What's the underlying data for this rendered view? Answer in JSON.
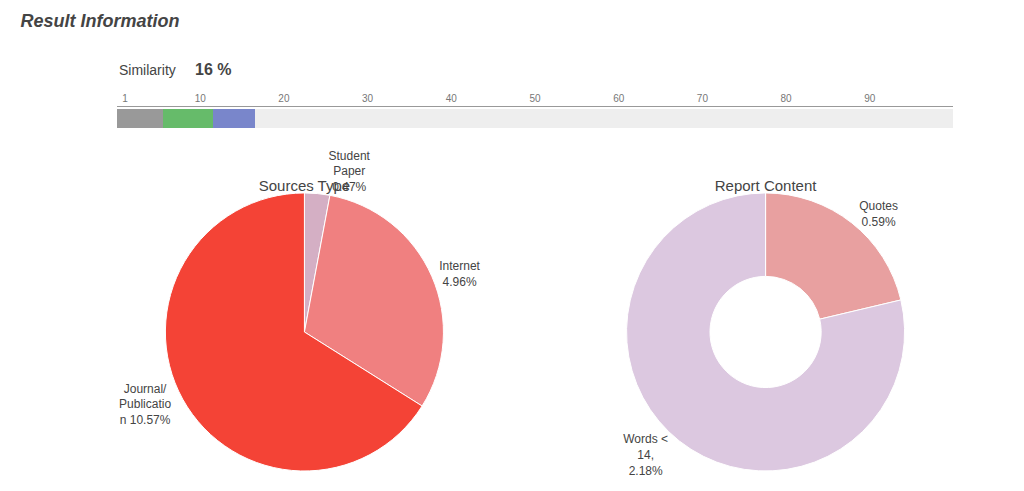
{
  "chart_data": [
    {
      "type": "bar",
      "orientation": "horizontal",
      "stacked": true,
      "title": "Result Information",
      "annotations": [
        "Similarity",
        "16 %"
      ],
      "categories": [
        null
      ],
      "series": [
        {
          "color": "#999999",
          "values": [
            5.5
          ]
        },
        {
          "color": "#66bb6a",
          "values": [
            6
          ]
        },
        {
          "color": "#7986cb",
          "values": [
            5
          ]
        },
        {
          "color": "#eeeeee",
          "values": [
            83.5
          ]
        }
      ],
      "xlim": [
        0,
        100
      ],
      "xticks": [
        1,
        10,
        20,
        30,
        40,
        50,
        60,
        70,
        80,
        90
      ],
      "grid": false,
      "tick_labels": "x"
    },
    {
      "type": "pie",
      "title": "Sources Type",
      "values": [
        0.47,
        4.96,
        10.57
      ],
      "value_labels": [
        "Student\nPaper\n0.47%",
        "Internet\n4.96%",
        "Journal/\nPublicatio\nn 10.57%"
      ],
      "colors": [
        "#d4afc4",
        "#f08080",
        "#f44336"
      ],
      "data_labels": true
    },
    {
      "type": "donut",
      "title": "Report Content",
      "values": [
        0.59,
        2.18
      ],
      "value_labels": [
        "Quotes\n0.59%",
        "Words <\n14,\n2.18%"
      ],
      "colors": [
        "#e8a0a0",
        "#dcc8e0"
      ],
      "data_labels": true
    }
  ]
}
